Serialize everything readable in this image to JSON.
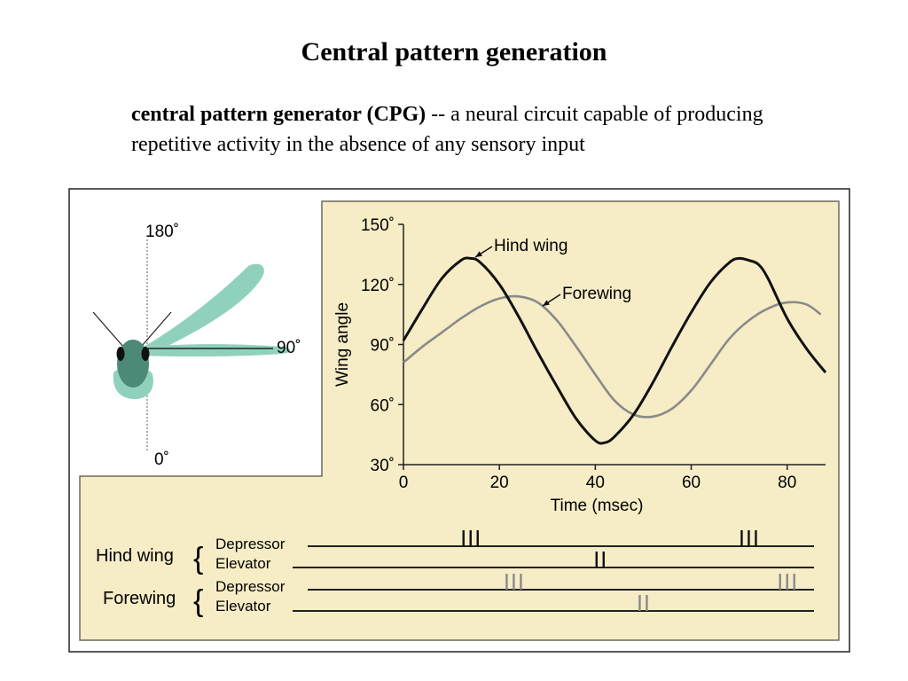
{
  "slide": {
    "title": "Central pattern generation",
    "definition_term": "central pattern generator (CPG)",
    "definition_text": " -- a neural circuit capable of producing repetitive activity in the absence of any sensory input"
  },
  "wing_diagram": {
    "angle_labels": [
      "180˚",
      "90˚",
      "0˚"
    ]
  },
  "chart_data": {
    "type": "line",
    "title": "",
    "xlabel": "Time (msec)",
    "ylabel": "Wing angle",
    "xlim": [
      0,
      88
    ],
    "ylim": [
      30,
      150
    ],
    "x_ticks": [
      0,
      20,
      40,
      60,
      80
    ],
    "x_tick_labels": [
      "0",
      "20",
      "40",
      "60",
      "80"
    ],
    "y_ticks": [
      30,
      60,
      90,
      120,
      150
    ],
    "y_tick_labels": [
      "30˚",
      "60˚",
      "90˚",
      "120˚",
      "150˚"
    ],
    "grid": false,
    "series": [
      {
        "name": "Hind wing",
        "color": "#111111",
        "x": [
          0,
          4,
          8,
          12,
          14,
          16,
          20,
          24,
          28,
          32,
          36,
          40,
          42,
          44,
          48,
          52,
          56,
          60,
          64,
          68,
          70,
          72,
          74,
          76,
          80,
          84,
          88
        ],
        "y": [
          92,
          108,
          123,
          132,
          133,
          131,
          120,
          104,
          86,
          69,
          53,
          42,
          41,
          44,
          55,
          71,
          89,
          106,
          121,
          131,
          133,
          132,
          130,
          123,
          103,
          88,
          76
        ]
      },
      {
        "name": "Forewing",
        "color": "#8a8a8a",
        "x": [
          0,
          4,
          8,
          12,
          16,
          20,
          24,
          28,
          32,
          36,
          40,
          44,
          48,
          52,
          56,
          60,
          64,
          68,
          72,
          76,
          80,
          84,
          87
        ],
        "y": [
          81,
          89,
          96,
          103,
          109,
          113,
          114,
          111,
          102,
          89,
          75,
          62,
          55,
          54,
          58,
          67,
          80,
          93,
          102,
          108,
          111,
          110,
          105
        ]
      }
    ],
    "annotations": [
      "Hind wing",
      "Forewing"
    ]
  },
  "spike_raster": {
    "groups": [
      {
        "label": "Hind wing",
        "rows": [
          {
            "label": "Depressor",
            "color": "#111111",
            "bursts": [
              {
                "t": 14,
                "n": 3
              },
              {
                "t": 72,
                "n": 3
              }
            ]
          },
          {
            "label": "Elevator",
            "color": "#111111",
            "bursts": [
              {
                "t": 41,
                "n": 2
              }
            ]
          }
        ]
      },
      {
        "label": "Forewing",
        "rows": [
          {
            "label": "Depressor",
            "color": "#8a8a8a",
            "bursts": [
              {
                "t": 23,
                "n": 3
              },
              {
                "t": 80,
                "n": 3
              }
            ]
          },
          {
            "label": "Elevator",
            "color": "#8a8a8a",
            "bursts": [
              {
                "t": 50,
                "n": 2
              }
            ]
          }
        ]
      }
    ]
  }
}
